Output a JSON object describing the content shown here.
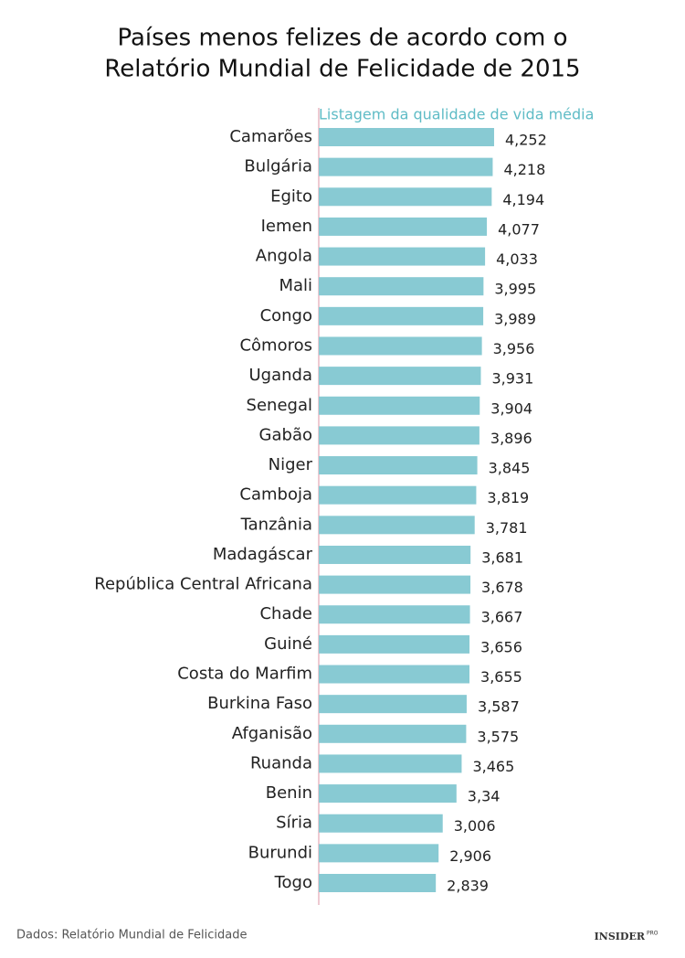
{
  "chart_data": {
    "type": "bar",
    "orientation": "horizontal",
    "title": [
      "Países menos felizes de acordo com o",
      "Relatório Mundial de Felicidade de 2015"
    ],
    "subtitle": "Listagem da qualidade de vida média",
    "categories": [
      "Camarões",
      "Bulgária",
      "Egito",
      "Iemen",
      "Angola",
      "Mali",
      "Congo",
      "Cômoros",
      "Uganda",
      "Senegal",
      "Gabão",
      "Niger",
      "Camboja",
      "Tanzânia",
      "Madagáscar",
      "República Central Africana",
      "Chade",
      "Guiné",
      "Costa do Marfim",
      "Burkina Faso",
      "Afganisão",
      "Ruanda",
      "Benin",
      "Síria",
      "Burundi",
      "Togo"
    ],
    "values": [
      4.252,
      4.218,
      4.194,
      4.077,
      4.033,
      3.995,
      3.989,
      3.956,
      3.931,
      3.904,
      3.896,
      3.845,
      3.819,
      3.781,
      3.681,
      3.678,
      3.667,
      3.656,
      3.655,
      3.587,
      3.575,
      3.465,
      3.34,
      3.006,
      2.906,
      2.839
    ],
    "value_labels": [
      "4,252",
      "4,218",
      "4,194",
      "4,077",
      "4,033",
      "3,995",
      "3,989",
      "3,956",
      "3,931",
      "3,904",
      "3,896",
      "3,845",
      "3,819",
      "3,781",
      "3,681",
      "3,678",
      "3,667",
      "3,656",
      "3,655",
      "3,587",
      "3,575",
      "3,465",
      "3,34",
      "3,006",
      "2,906",
      "2,839"
    ],
    "color": "#88cad3",
    "xlim": [
      0,
      5
    ],
    "source": "Dados: Relatório Mundial de Felicidade",
    "logo": [
      "INSIDER",
      "PRO"
    ]
  }
}
